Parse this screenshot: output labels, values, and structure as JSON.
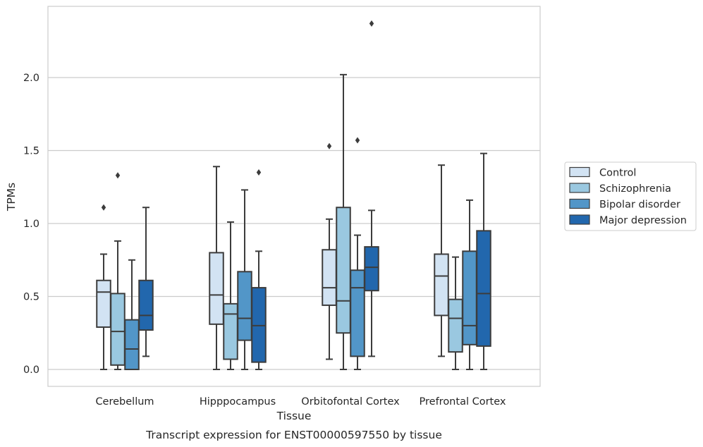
{
  "chart_data": {
    "type": "boxplot",
    "xlabel": "Tissue",
    "ylabel": "TPMs",
    "caption": "Transcript expression for ENST00000597550 by tissue",
    "ylim": [
      -0.12,
      2.48
    ],
    "yticks": [
      0.0,
      0.5,
      1.0,
      1.5,
      2.0
    ],
    "ytick_labels": [
      "0.0",
      "0.5",
      "1.0",
      "1.5",
      "2.0"
    ],
    "grid": "horizontal",
    "legend_position": "right",
    "categories": [
      "Cerebellum",
      "Hipppocampus",
      "Orbitofontal Cortex",
      "Prefrontal Cortex"
    ],
    "series": [
      {
        "name": "Control",
        "color": "#d2e3f3",
        "boxes": [
          {
            "whislo": 0.0,
            "q1": 0.29,
            "med": 0.53,
            "q3": 0.61,
            "whishi": 0.79,
            "fliers": [
              1.11
            ]
          },
          {
            "whislo": 0.0,
            "q1": 0.31,
            "med": 0.51,
            "q3": 0.8,
            "whishi": 1.39,
            "fliers": []
          },
          {
            "whislo": 0.07,
            "q1": 0.44,
            "med": 0.56,
            "q3": 0.82,
            "whishi": 1.03,
            "fliers": [
              1.53
            ]
          },
          {
            "whislo": 0.09,
            "q1": 0.37,
            "med": 0.64,
            "q3": 0.79,
            "whishi": 1.4,
            "fliers": []
          }
        ]
      },
      {
        "name": "Schizophrenia",
        "color": "#9ac8e0",
        "boxes": [
          {
            "whislo": 0.0,
            "q1": 0.03,
            "med": 0.26,
            "q3": 0.52,
            "whishi": 0.88,
            "fliers": [
              1.33
            ]
          },
          {
            "whislo": 0.0,
            "q1": 0.07,
            "med": 0.38,
            "q3": 0.45,
            "whishi": 1.01,
            "fliers": []
          },
          {
            "whislo": 0.0,
            "q1": 0.25,
            "med": 0.47,
            "q3": 1.11,
            "whishi": 2.02,
            "fliers": []
          },
          {
            "whislo": 0.0,
            "q1": 0.12,
            "med": 0.35,
            "q3": 0.48,
            "whishi": 0.77,
            "fliers": []
          }
        ]
      },
      {
        "name": "Bipolar disorder",
        "color": "#5296c8",
        "boxes": [
          {
            "whislo": 0.0,
            "q1": 0.0,
            "med": 0.14,
            "q3": 0.34,
            "whishi": 0.75,
            "fliers": []
          },
          {
            "whislo": 0.0,
            "q1": 0.2,
            "med": 0.35,
            "q3": 0.67,
            "whishi": 1.23,
            "fliers": []
          },
          {
            "whislo": 0.0,
            "q1": 0.09,
            "med": 0.56,
            "q3": 0.68,
            "whishi": 0.92,
            "fliers": [
              1.57
            ]
          },
          {
            "whislo": 0.0,
            "q1": 0.17,
            "med": 0.3,
            "q3": 0.81,
            "whishi": 1.16,
            "fliers": []
          }
        ]
      },
      {
        "name": "Major depression",
        "color": "#2267ad",
        "boxes": [
          {
            "whislo": 0.09,
            "q1": 0.27,
            "med": 0.37,
            "q3": 0.61,
            "whishi": 1.11,
            "fliers": []
          },
          {
            "whislo": 0.0,
            "q1": 0.05,
            "med": 0.3,
            "q3": 0.56,
            "whishi": 0.81,
            "fliers": [
              1.35
            ]
          },
          {
            "whislo": 0.09,
            "q1": 0.54,
            "med": 0.7,
            "q3": 0.84,
            "whishi": 1.09,
            "fliers": [
              2.37
            ]
          },
          {
            "whislo": 0.0,
            "q1": 0.16,
            "med": 0.52,
            "q3": 0.95,
            "whishi": 1.48,
            "fliers": []
          }
        ]
      }
    ]
  }
}
